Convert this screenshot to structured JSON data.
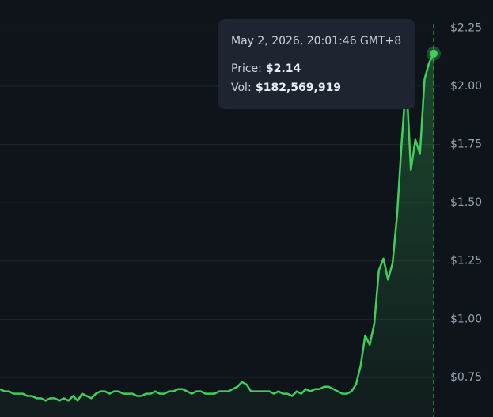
{
  "chart_data": {
    "type": "area",
    "values": [
      0.7,
      0.69,
      0.69,
      0.68,
      0.68,
      0.68,
      0.67,
      0.67,
      0.66,
      0.66,
      0.65,
      0.66,
      0.66,
      0.65,
      0.66,
      0.65,
      0.67,
      0.65,
      0.68,
      0.67,
      0.66,
      0.68,
      0.69,
      0.69,
      0.68,
      0.69,
      0.69,
      0.68,
      0.68,
      0.68,
      0.67,
      0.67,
      0.68,
      0.68,
      0.69,
      0.68,
      0.68,
      0.69,
      0.69,
      0.7,
      0.7,
      0.69,
      0.68,
      0.69,
      0.69,
      0.68,
      0.68,
      0.68,
      0.69,
      0.69,
      0.69,
      0.7,
      0.71,
      0.73,
      0.72,
      0.69,
      0.69,
      0.69,
      0.69,
      0.69,
      0.68,
      0.69,
      0.68,
      0.68,
      0.67,
      0.69,
      0.68,
      0.7,
      0.69,
      0.7,
      0.7,
      0.71,
      0.71,
      0.7,
      0.69,
      0.68,
      0.68,
      0.69,
      0.72,
      0.8,
      0.93,
      0.89,
      0.98,
      1.21,
      1.26,
      1.17,
      1.24,
      1.45,
      1.76,
      2.03,
      1.64,
      1.77,
      1.71,
      2.03,
      2.1,
      2.14
    ],
    "color": "#3ecf5c",
    "ylim": [
      0.58,
      2.37
    ],
    "yticks": [
      {
        "value": 0.75,
        "label": "$0.75"
      },
      {
        "value": 1.0,
        "label": "$1.00"
      },
      {
        "value": 1.25,
        "label": "$1.25"
      },
      {
        "value": 1.5,
        "label": "$1.50"
      },
      {
        "value": 1.75,
        "label": "$1.75"
      },
      {
        "value": 2.0,
        "label": "$2.00"
      },
      {
        "value": 2.25,
        "label": "$2.25"
      }
    ],
    "grid": true,
    "tooltip": {
      "time": "May 2, 2026, 20:01:46 GMT+8",
      "price_label": "Price:",
      "price": "$2.14",
      "vol_label": "Vol:",
      "vol": "$182,569,919"
    }
  }
}
